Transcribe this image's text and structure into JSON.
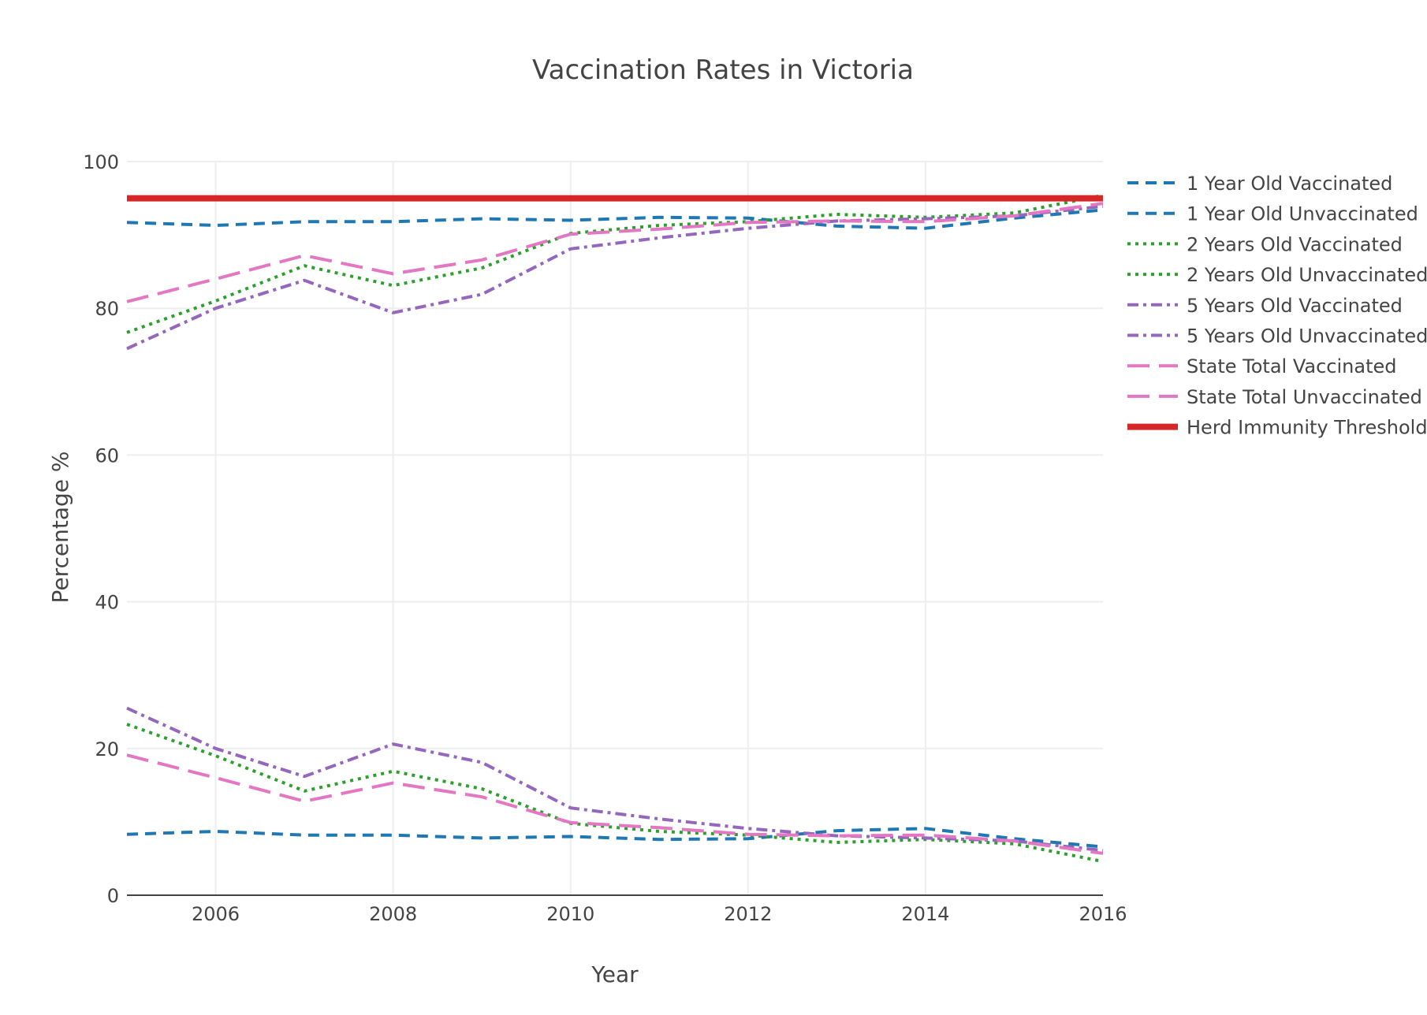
{
  "chart_data": {
    "type": "line",
    "title": "Vaccination Rates in Victoria",
    "xlabel": "Year",
    "ylabel": "Percentage %",
    "xlim": [
      2005,
      2016
    ],
    "ylim": [
      0,
      100
    ],
    "x_ticks": [
      2006,
      2008,
      2010,
      2012,
      2014,
      2016
    ],
    "y_ticks": [
      0,
      20,
      40,
      60,
      80,
      100
    ],
    "grid": true,
    "legend_position": "right",
    "x": [
      2005,
      2006,
      2007,
      2008,
      2009,
      2010,
      2011,
      2012,
      2013,
      2014,
      2015,
      2016
    ],
    "series": [
      {
        "name": "1 Year Old Vaccinated",
        "color": "#1f77b4",
        "dash": "dashed",
        "values": [
          91.7,
          91.3,
          91.8,
          91.8,
          92.2,
          92.0,
          92.4,
          92.3,
          91.2,
          90.9,
          92.3,
          93.4
        ]
      },
      {
        "name": "1 Year Old Unvaccinated",
        "color": "#1f77b4",
        "dash": "dashed",
        "values": [
          8.3,
          8.7,
          8.2,
          8.2,
          7.8,
          8.0,
          7.6,
          7.7,
          8.8,
          9.1,
          7.7,
          6.6
        ]
      },
      {
        "name": "2 Years Old Vaccinated",
        "color": "#2ca02c",
        "dash": "dotted",
        "values": [
          76.7,
          81.0,
          85.8,
          83.1,
          85.5,
          90.2,
          91.3,
          91.8,
          92.8,
          92.4,
          93.0,
          95.4
        ]
      },
      {
        "name": "2 Years Old Unvaccinated",
        "color": "#2ca02c",
        "dash": "dotted",
        "values": [
          23.3,
          19.0,
          14.2,
          16.9,
          14.5,
          9.8,
          8.7,
          8.2,
          7.2,
          7.6,
          7.0,
          4.6
        ]
      },
      {
        "name": "5 Years Old Vaccinated",
        "color": "#9467bd",
        "dash": "dashdot",
        "values": [
          74.5,
          80.0,
          83.8,
          79.4,
          81.9,
          88.1,
          89.6,
          90.9,
          91.9,
          92.2,
          92.6,
          93.9
        ]
      },
      {
        "name": "5 Years Old Unvaccinated",
        "color": "#9467bd",
        "dash": "dashdot",
        "values": [
          25.5,
          20.0,
          16.2,
          20.6,
          18.1,
          11.9,
          10.4,
          9.1,
          8.1,
          7.8,
          7.4,
          6.1
        ]
      },
      {
        "name": "State Total Vaccinated",
        "color": "#e377c2",
        "dash": "longdash",
        "values": [
          80.9,
          84.0,
          87.2,
          84.7,
          86.6,
          90.1,
          90.8,
          91.7,
          91.9,
          91.8,
          92.6,
          94.3
        ]
      },
      {
        "name": "State Total Unvaccinated",
        "color": "#e377c2",
        "dash": "longdash",
        "values": [
          19.1,
          16.0,
          12.8,
          15.3,
          13.4,
          9.9,
          9.2,
          8.3,
          8.1,
          8.2,
          7.4,
          5.7
        ]
      },
      {
        "name": "Herd Immunity Threshold",
        "color": "#d62728",
        "dash": "solid",
        "values": [
          95,
          95,
          95,
          95,
          95,
          95,
          95,
          95,
          95,
          95,
          95,
          95
        ]
      }
    ]
  }
}
